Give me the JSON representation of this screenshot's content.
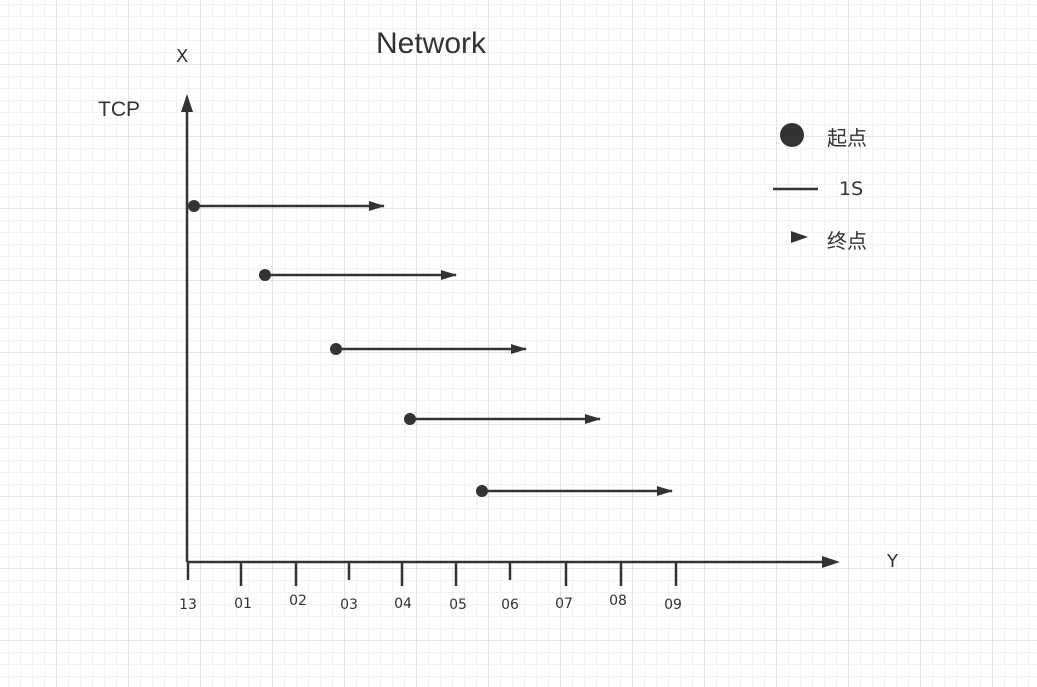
{
  "title": "Network",
  "x_axis_label": "X",
  "y_axis_label": "Y",
  "protocol_label": "TCP",
  "ticks": [
    "13",
    "01",
    "02",
    "03",
    "04",
    "05",
    "06",
    "07",
    "08",
    "09"
  ],
  "legend": {
    "start_label": "起点",
    "duration_label": "1S",
    "end_label": "终点"
  },
  "colors": {
    "ink": "#333333",
    "grid_major": "#e3e3e3",
    "grid_minor": "#f2f2f2",
    "background": "#ffffff"
  }
}
